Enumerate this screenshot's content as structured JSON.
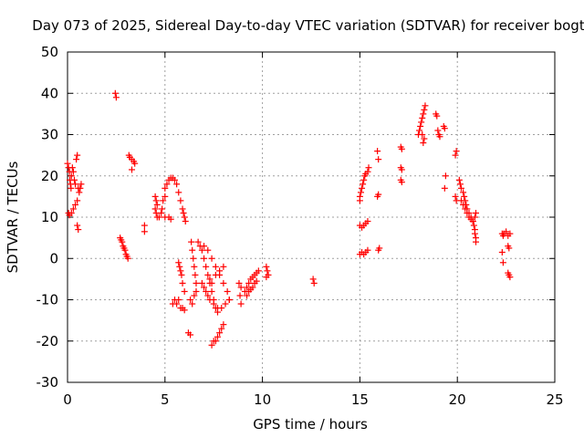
{
  "chart_data": {
    "type": "scatter",
    "title": "Day 073 of 2025, Sidereal Day-to-day VTEC variation (SDTVAR) for receiver bogt",
    "xlabel": "GPS time / hours",
    "ylabel": "SDTVAR / TECUs",
    "xlim": [
      0,
      25
    ],
    "ylim": [
      -30,
      50
    ],
    "xticks": [
      "0",
      "5",
      "10",
      "15",
      "20",
      "25"
    ],
    "yticks": [
      "-30",
      "-20",
      "-10",
      "0",
      "10",
      "20",
      "30",
      "40",
      "50"
    ],
    "grid": true,
    "marker": "plus",
    "color": "#ff0000",
    "series": [
      {
        "points": [
          [
            0.0,
            23
          ],
          [
            0.05,
            22
          ],
          [
            0.1,
            21
          ],
          [
            0.12,
            19
          ],
          [
            0.15,
            18
          ],
          [
            0.18,
            17
          ],
          [
            0.2,
            20
          ],
          [
            0.25,
            22
          ],
          [
            0.3,
            21
          ],
          [
            0.35,
            19
          ],
          [
            0.4,
            18
          ],
          [
            0.45,
            24
          ],
          [
            0.5,
            25
          ],
          [
            0.55,
            17
          ],
          [
            0.6,
            16
          ],
          [
            0.65,
            17
          ],
          [
            0.7,
            18
          ],
          [
            0.05,
            11
          ],
          [
            0.1,
            10.5
          ],
          [
            0.2,
            11
          ],
          [
            0.3,
            12
          ],
          [
            0.4,
            13
          ],
          [
            0.5,
            14
          ],
          [
            0.5,
            8
          ],
          [
            0.55,
            7
          ],
          [
            2.45,
            40
          ],
          [
            2.5,
            39
          ],
          [
            2.7,
            5
          ],
          [
            2.75,
            4.5
          ],
          [
            2.8,
            4
          ],
          [
            2.85,
            3
          ],
          [
            2.9,
            2.5
          ],
          [
            2.95,
            2
          ],
          [
            3.0,
            1
          ],
          [
            3.05,
            0.5
          ],
          [
            3.1,
            0
          ],
          [
            3.15,
            25
          ],
          [
            3.2,
            24.5
          ],
          [
            3.3,
            24
          ],
          [
            3.4,
            23.5
          ],
          [
            3.45,
            23
          ],
          [
            3.3,
            21.5
          ],
          [
            3.95,
            8
          ],
          [
            3.95,
            6.5
          ],
          [
            4.5,
            15
          ],
          [
            4.55,
            14
          ],
          [
            4.6,
            13
          ],
          [
            4.5,
            12
          ],
          [
            4.55,
            11
          ],
          [
            4.6,
            10
          ],
          [
            4.7,
            10
          ],
          [
            4.8,
            11
          ],
          [
            4.85,
            12
          ],
          [
            4.9,
            14
          ],
          [
            5.0,
            15
          ],
          [
            5.0,
            10
          ],
          [
            5.0,
            17
          ],
          [
            5.1,
            18
          ],
          [
            5.2,
            19
          ],
          [
            5.3,
            19.5
          ],
          [
            5.4,
            19.5
          ],
          [
            5.5,
            19
          ],
          [
            5.6,
            18
          ],
          [
            5.7,
            16
          ],
          [
            5.8,
            14
          ],
          [
            5.9,
            12
          ],
          [
            5.95,
            11
          ],
          [
            6.0,
            10
          ],
          [
            6.05,
            9
          ],
          [
            5.2,
            10
          ],
          [
            5.3,
            9.5
          ],
          [
            5.4,
            -11
          ],
          [
            5.5,
            -10
          ],
          [
            5.6,
            -11
          ],
          [
            5.7,
            -10
          ],
          [
            5.8,
            -12
          ],
          [
            5.9,
            -12
          ],
          [
            6.0,
            -12.5
          ],
          [
            5.7,
            -1
          ],
          [
            5.75,
            -2
          ],
          [
            5.8,
            -3
          ],
          [
            5.85,
            -4
          ],
          [
            5.9,
            -6
          ],
          [
            6.0,
            -8
          ],
          [
            6.3,
            -10
          ],
          [
            6.4,
            -11
          ],
          [
            6.5,
            -9
          ],
          [
            6.6,
            -8
          ],
          [
            6.2,
            -18
          ],
          [
            6.3,
            -18.5
          ],
          [
            6.35,
            4
          ],
          [
            6.4,
            2
          ],
          [
            6.45,
            0
          ],
          [
            6.5,
            -2
          ],
          [
            6.55,
            -4
          ],
          [
            6.6,
            -6
          ],
          [
            6.7,
            4
          ],
          [
            6.8,
            3
          ],
          [
            6.9,
            2
          ],
          [
            7.0,
            0
          ],
          [
            7.1,
            -2
          ],
          [
            7.2,
            -4
          ],
          [
            7.3,
            -6
          ],
          [
            7.4,
            -8
          ],
          [
            7.5,
            -10
          ],
          [
            7.6,
            -12
          ],
          [
            7.7,
            -13
          ],
          [
            6.9,
            -6
          ],
          [
            7.0,
            -7
          ],
          [
            7.1,
            -8
          ],
          [
            7.2,
            -9
          ],
          [
            7.3,
            -10
          ],
          [
            7.5,
            -11
          ],
          [
            7.7,
            -12
          ],
          [
            7.9,
            -12
          ],
          [
            8.1,
            -11
          ],
          [
            8.3,
            -10
          ],
          [
            7.0,
            3
          ],
          [
            7.2,
            2
          ],
          [
            7.4,
            0
          ],
          [
            7.6,
            -2
          ],
          [
            7.8,
            -4
          ],
          [
            8.0,
            -6
          ],
          [
            8.2,
            -8
          ],
          [
            8.3,
            -10
          ],
          [
            7.4,
            -21
          ],
          [
            7.5,
            -20
          ],
          [
            7.6,
            -20
          ],
          [
            7.7,
            -19
          ],
          [
            7.8,
            -18
          ],
          [
            7.9,
            -17
          ],
          [
            8.0,
            -16
          ],
          [
            7.3,
            -5
          ],
          [
            7.4,
            -6
          ],
          [
            7.6,
            -4
          ],
          [
            7.8,
            -3
          ],
          [
            8.0,
            -2
          ],
          [
            8.8,
            -6
          ],
          [
            8.9,
            -7
          ],
          [
            8.85,
            -9
          ],
          [
            8.9,
            -11
          ],
          [
            9.1,
            -8
          ],
          [
            9.2,
            -7
          ],
          [
            9.3,
            -6
          ],
          [
            9.4,
            -5
          ],
          [
            9.5,
            -4.5
          ],
          [
            9.6,
            -4
          ],
          [
            9.7,
            -3.5
          ],
          [
            9.8,
            -3
          ],
          [
            9.2,
            -9
          ],
          [
            9.3,
            -8
          ],
          [
            9.4,
            -7.5
          ],
          [
            9.5,
            -7
          ],
          [
            9.6,
            -6
          ],
          [
            9.7,
            -5.5
          ],
          [
            10.2,
            -2
          ],
          [
            10.25,
            -3
          ],
          [
            10.3,
            -4
          ],
          [
            10.2,
            -4.5
          ],
          [
            12.6,
            -5
          ],
          [
            12.65,
            -6
          ],
          [
            15.0,
            15
          ],
          [
            15.05,
            16
          ],
          [
            15.1,
            17
          ],
          [
            15.15,
            18
          ],
          [
            15.2,
            19
          ],
          [
            15.25,
            20
          ],
          [
            15.3,
            20.5
          ],
          [
            15.4,
            21
          ],
          [
            15.45,
            22
          ],
          [
            15.0,
            14
          ],
          [
            15.0,
            8
          ],
          [
            15.1,
            7.5
          ],
          [
            15.2,
            8
          ],
          [
            15.3,
            8.5
          ],
          [
            15.4,
            9
          ],
          [
            15.0,
            1
          ],
          [
            15.1,
            1.5
          ],
          [
            15.2,
            1
          ],
          [
            15.3,
            1.5
          ],
          [
            15.4,
            2
          ],
          [
            15.9,
            26
          ],
          [
            15.95,
            24
          ],
          [
            15.9,
            15
          ],
          [
            15.95,
            15.5
          ],
          [
            15.95,
            2
          ],
          [
            16.0,
            2.5
          ],
          [
            17.1,
            27
          ],
          [
            17.15,
            26.5
          ],
          [
            17.1,
            22
          ],
          [
            17.15,
            21.5
          ],
          [
            17.1,
            19
          ],
          [
            17.15,
            18.5
          ],
          [
            18.0,
            30
          ],
          [
            18.05,
            31
          ],
          [
            18.1,
            32
          ],
          [
            18.15,
            33
          ],
          [
            18.2,
            34
          ],
          [
            18.25,
            35
          ],
          [
            18.3,
            36
          ],
          [
            18.35,
            37
          ],
          [
            18.3,
            29
          ],
          [
            18.25,
            28
          ],
          [
            18.2,
            30
          ],
          [
            18.9,
            35
          ],
          [
            18.95,
            34.5
          ],
          [
            19.0,
            31
          ],
          [
            19.05,
            30
          ],
          [
            19.1,
            29.5
          ],
          [
            19.3,
            32
          ],
          [
            19.35,
            31.5
          ],
          [
            19.4,
            20
          ],
          [
            19.35,
            17
          ],
          [
            19.9,
            25
          ],
          [
            19.95,
            26
          ],
          [
            19.9,
            15
          ],
          [
            19.95,
            14
          ],
          [
            20.1,
            19
          ],
          [
            20.15,
            18
          ],
          [
            20.2,
            17
          ],
          [
            20.3,
            16
          ],
          [
            20.35,
            15
          ],
          [
            20.4,
            14
          ],
          [
            20.45,
            13
          ],
          [
            20.5,
            12
          ],
          [
            20.6,
            11
          ],
          [
            20.7,
            10
          ],
          [
            20.8,
            9
          ],
          [
            20.85,
            8
          ],
          [
            20.9,
            7
          ],
          [
            20.9,
            6
          ],
          [
            20.95,
            5
          ],
          [
            20.95,
            4
          ],
          [
            20.2,
            14
          ],
          [
            20.3,
            13
          ],
          [
            20.4,
            12
          ],
          [
            20.5,
            11
          ],
          [
            20.6,
            10
          ],
          [
            20.7,
            9.5
          ],
          [
            20.8,
            9
          ],
          [
            20.9,
            10
          ],
          [
            20.95,
            11
          ],
          [
            22.3,
            6
          ],
          [
            22.35,
            5.5
          ],
          [
            22.4,
            6
          ],
          [
            22.5,
            6.5
          ],
          [
            22.6,
            5.5
          ],
          [
            22.7,
            6
          ],
          [
            22.3,
            1.5
          ],
          [
            22.35,
            -1
          ],
          [
            22.6,
            3
          ],
          [
            22.65,
            2.5
          ],
          [
            22.6,
            -3.5
          ],
          [
            22.65,
            -4
          ],
          [
            22.7,
            -4.5
          ]
        ]
      }
    ]
  }
}
